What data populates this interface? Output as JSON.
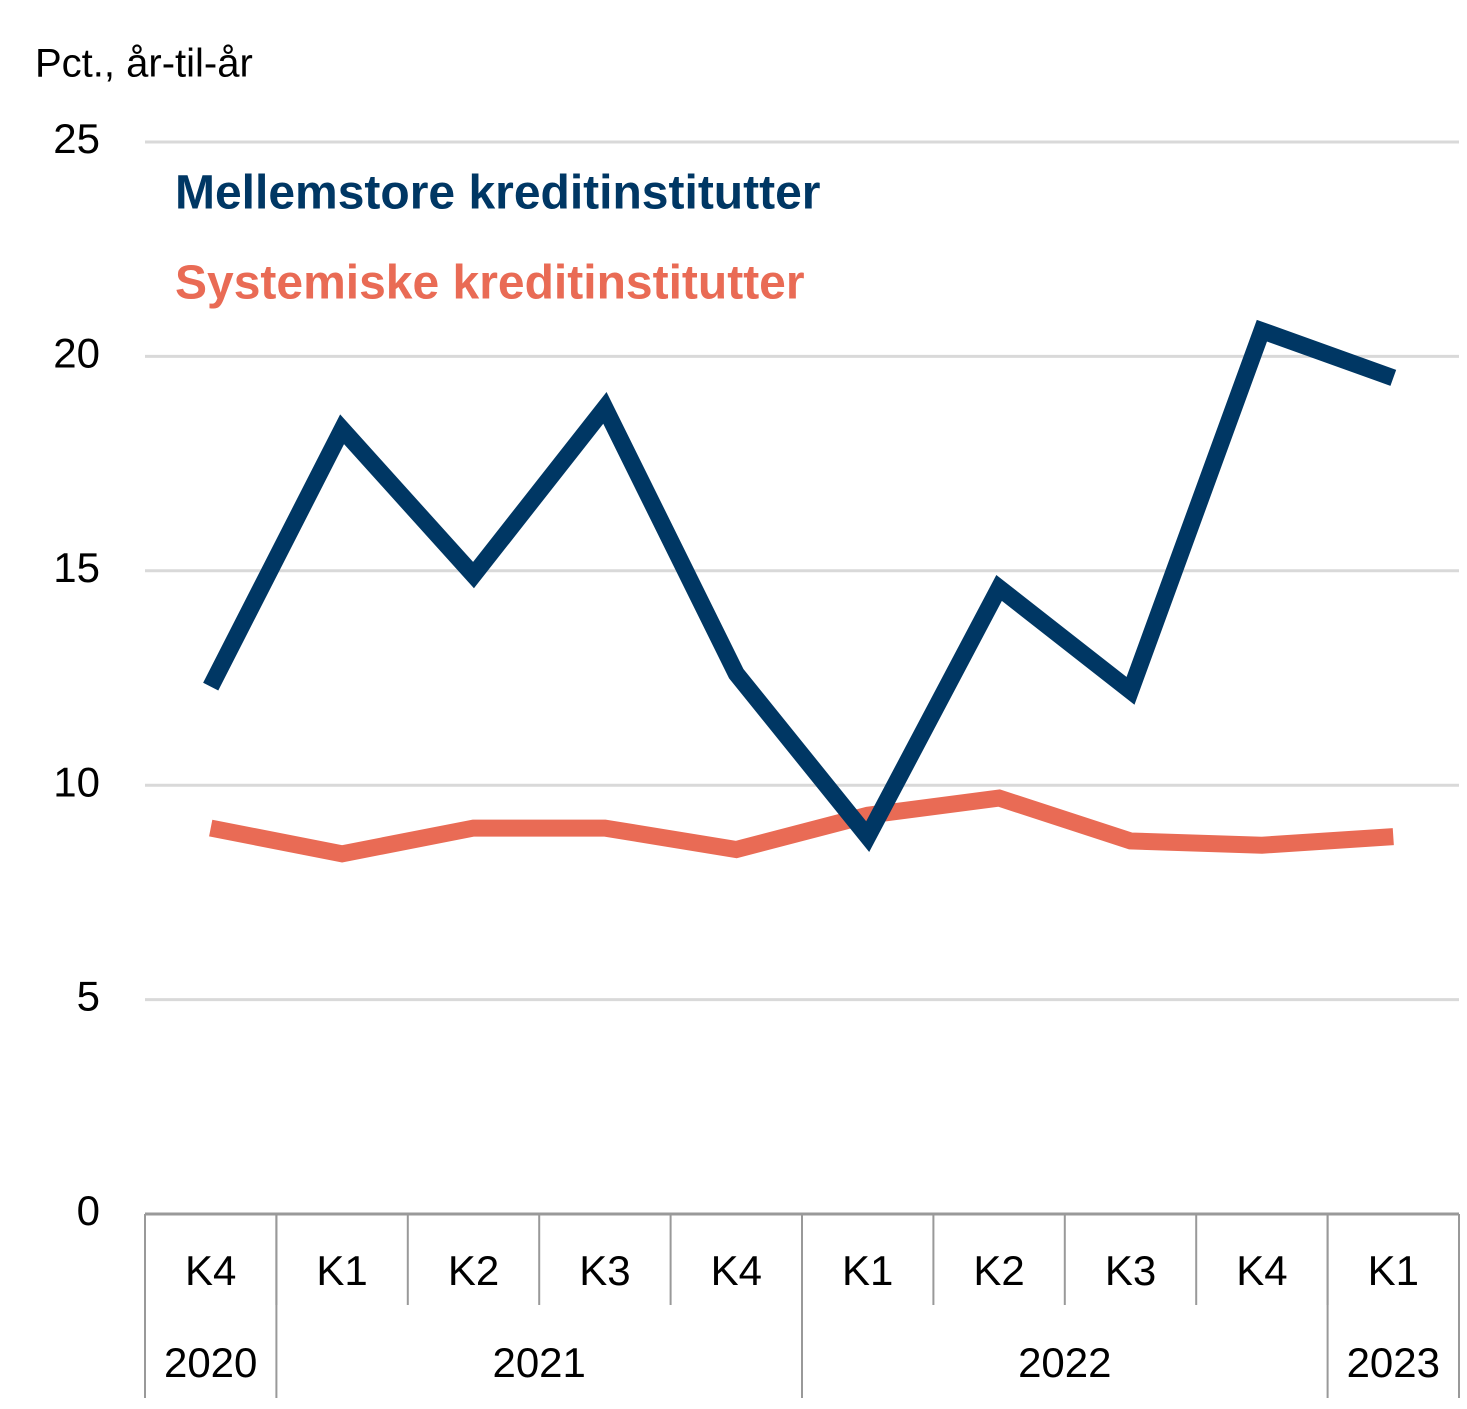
{
  "chart_data": {
    "type": "line",
    "y_axis_label": "Pct., år-til-år",
    "categories": [
      "K4",
      "K1",
      "K2",
      "K3",
      "K4",
      "K1",
      "K2",
      "K3",
      "K4",
      "K1"
    ],
    "category_groups": [
      {
        "label": "2020",
        "count": 1
      },
      {
        "label": "2021",
        "count": 4
      },
      {
        "label": "2022",
        "count": 4
      },
      {
        "label": "2023",
        "count": 1
      }
    ],
    "series": [
      {
        "name": "Mellemstore kreditinstitutter",
        "color": "#003764",
        "values": [
          12.3,
          18.3,
          14.9,
          18.8,
          12.6,
          8.8,
          14.6,
          12.2,
          20.6,
          19.5
        ]
      },
      {
        "name": "Systemiske kreditinstitutter",
        "color": "#e96b55",
        "values": [
          9.0,
          8.4,
          9.0,
          9.0,
          8.5,
          9.3,
          9.7,
          8.7,
          8.6,
          8.8
        ]
      }
    ],
    "ylim": [
      0,
      25
    ],
    "yticks": [
      0,
      5,
      10,
      15,
      20,
      25
    ],
    "grid": true
  }
}
